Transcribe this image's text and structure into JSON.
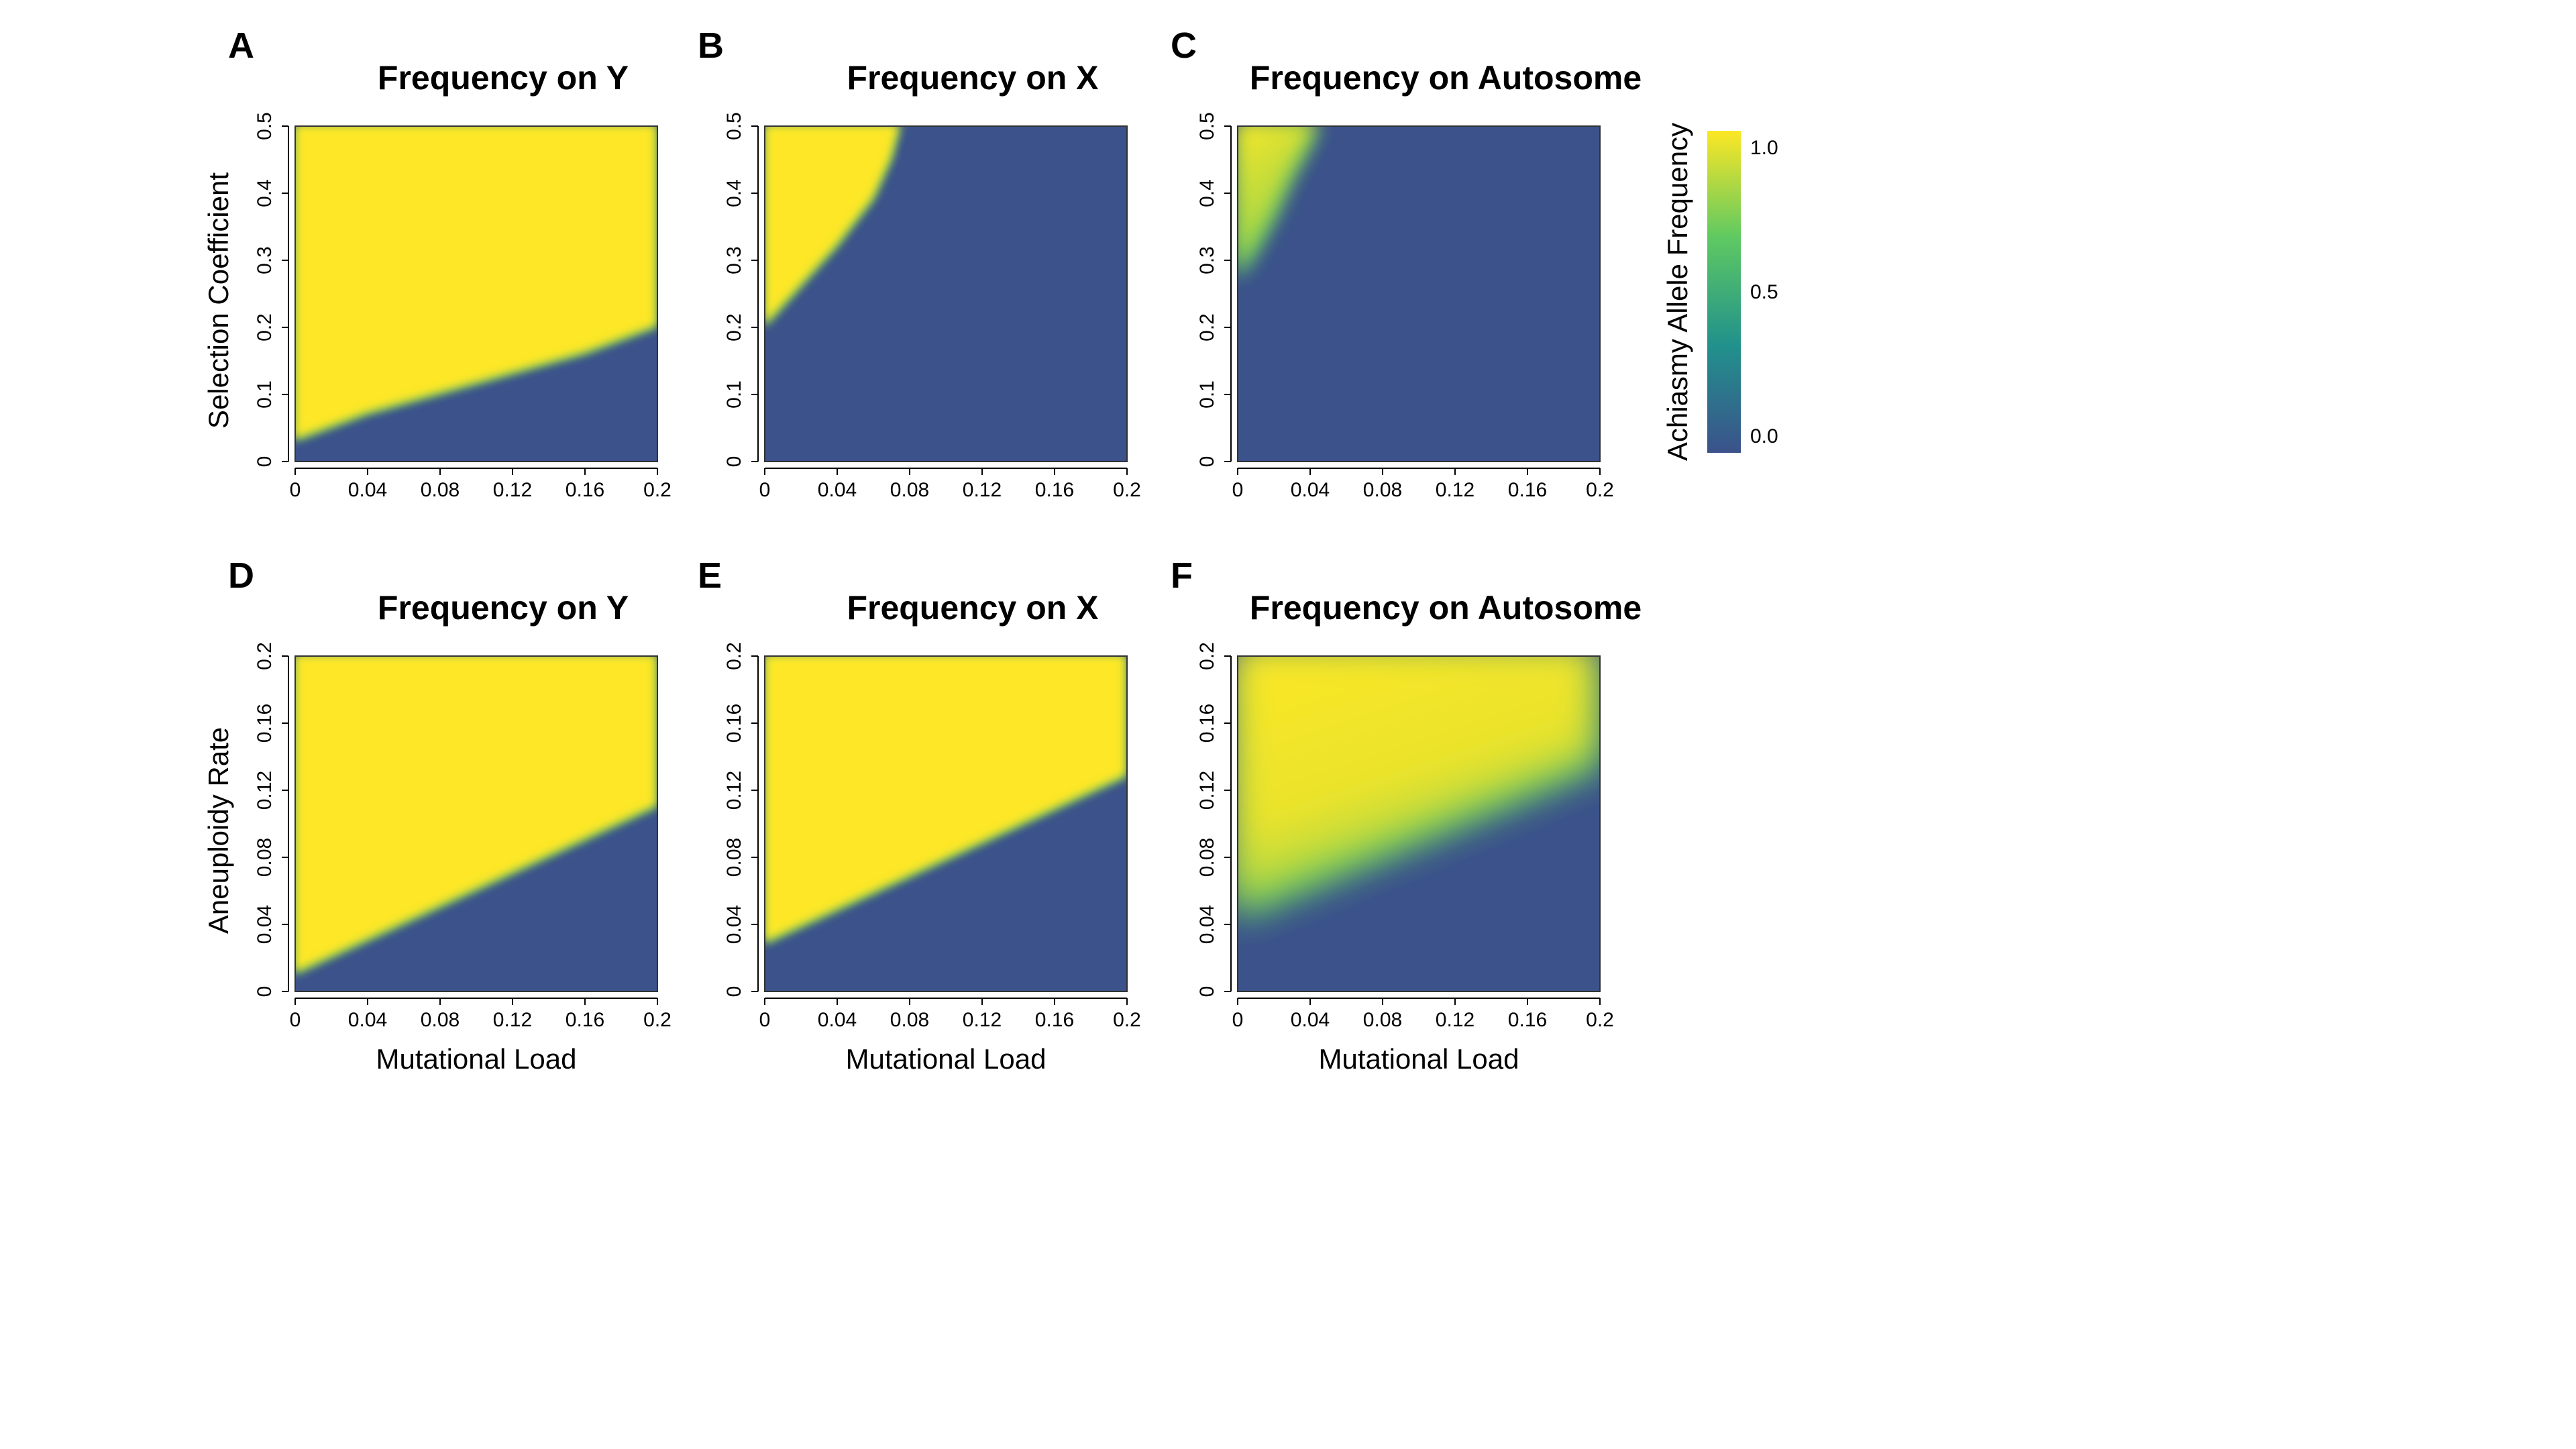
{
  "chart_data": [
    {
      "type": "heatmap",
      "panel": "A",
      "title": "Frequency on Y",
      "xlabel": "",
      "ylabel": "Selection Coefficient",
      "xlim": [
        0,
        0.2
      ],
      "ylim": [
        0,
        0.5
      ],
      "xticks": [
        "0",
        "0.04",
        "0.08",
        "0.12",
        "0.16",
        "0.2"
      ],
      "yticks": [
        "0",
        "0.1",
        "0.2",
        "0.3",
        "0.4",
        "0.5"
      ],
      "value_range": [
        0,
        1
      ],
      "boundary": [
        [
          0,
          0.03
        ],
        [
          0.04,
          0.07
        ],
        [
          0.08,
          0.1
        ],
        [
          0.12,
          0.13
        ],
        [
          0.16,
          0.16
        ],
        [
          0.2,
          0.2
        ]
      ],
      "above_boundary": 1.0,
      "below_boundary": 0.0
    },
    {
      "type": "heatmap",
      "panel": "B",
      "title": "Frequency on X",
      "xlabel": "",
      "ylabel": "",
      "xlim": [
        0,
        0.2
      ],
      "ylim": [
        0,
        0.5
      ],
      "xticks": [
        "0",
        "0.04",
        "0.08",
        "0.12",
        "0.16",
        "0.2"
      ],
      "yticks": [
        "0",
        "0.1",
        "0.2",
        "0.3",
        "0.4",
        "0.5"
      ],
      "value_range": [
        0,
        1
      ],
      "boundary": [
        [
          0,
          0.2
        ],
        [
          0.02,
          0.26
        ],
        [
          0.04,
          0.32
        ],
        [
          0.06,
          0.39
        ],
        [
          0.07,
          0.45
        ],
        [
          0.075,
          0.5
        ]
      ],
      "above_boundary": 1.0,
      "below_boundary": 0.0
    },
    {
      "type": "heatmap",
      "panel": "C",
      "title": "Frequency on Autosome",
      "xlabel": "",
      "ylabel": "",
      "xlim": [
        0,
        0.2
      ],
      "ylim": [
        0,
        0.5
      ],
      "xticks": [
        "0",
        "0.04",
        "0.08",
        "0.12",
        "0.16",
        "0.2"
      ],
      "yticks": [
        "0",
        "0.1",
        "0.2",
        "0.3",
        "0.4",
        "0.5"
      ],
      "value_range": [
        0,
        1
      ],
      "boundary": [
        [
          0,
          0.27
        ],
        [
          0.01,
          0.31
        ],
        [
          0.02,
          0.36
        ],
        [
          0.03,
          0.42
        ],
        [
          0.04,
          0.47
        ],
        [
          0.045,
          0.5
        ]
      ],
      "above_boundary": 0.9,
      "below_boundary": 0.0
    },
    {
      "type": "heatmap",
      "panel": "D",
      "title": "Frequency on Y",
      "xlabel": "Mutational Load",
      "ylabel": "Aneuploidy Rate",
      "xlim": [
        0,
        0.2
      ],
      "ylim": [
        0,
        0.2
      ],
      "xticks": [
        "0",
        "0.04",
        "0.08",
        "0.12",
        "0.16",
        "0.2"
      ],
      "yticks": [
        "0",
        "0.04",
        "0.08",
        "0.12",
        "0.16",
        "0.2"
      ],
      "value_range": [
        0,
        1
      ],
      "boundary": [
        [
          0,
          0.01
        ],
        [
          0.2,
          0.11
        ]
      ],
      "above_boundary": 1.0,
      "below_boundary": 0.0
    },
    {
      "type": "heatmap",
      "panel": "E",
      "title": "Frequency on X",
      "xlabel": "Mutational Load",
      "ylabel": "",
      "xlim": [
        0,
        0.2
      ],
      "ylim": [
        0,
        0.2
      ],
      "xticks": [
        "0",
        "0.04",
        "0.08",
        "0.12",
        "0.16",
        "0.2"
      ],
      "yticks": [
        "0",
        "0.04",
        "0.08",
        "0.12",
        "0.16",
        "0.2"
      ],
      "value_range": [
        0,
        1
      ],
      "boundary": [
        [
          0,
          0.028
        ],
        [
          0.2,
          0.128
        ]
      ],
      "above_boundary": 1.0,
      "below_boundary": 0.0
    },
    {
      "type": "heatmap",
      "panel": "F",
      "title": "Frequency on Autosome",
      "xlabel": "Mutational Load",
      "ylabel": "",
      "xlim": [
        0,
        0.2
      ],
      "ylim": [
        0,
        0.2
      ],
      "xticks": [
        "0",
        "0.04",
        "0.08",
        "0.12",
        "0.16",
        "0.2"
      ],
      "yticks": [
        "0",
        "0.04",
        "0.08",
        "0.12",
        "0.16",
        "0.2"
      ],
      "value_range": [
        0,
        1
      ],
      "boundary": [
        [
          0,
          0.042
        ],
        [
          0.2,
          0.132
        ]
      ],
      "above_boundary": 1.0,
      "below_boundary": 0.0
    }
  ],
  "colorbar": {
    "label": "Achiasmy Allele Frequency",
    "ticks": [
      "0.0",
      "0.5",
      "1.0"
    ],
    "range": [
      0,
      1
    ],
    "colors": [
      "#3b528b",
      "#21918c",
      "#5ec962",
      "#fde725"
    ]
  }
}
